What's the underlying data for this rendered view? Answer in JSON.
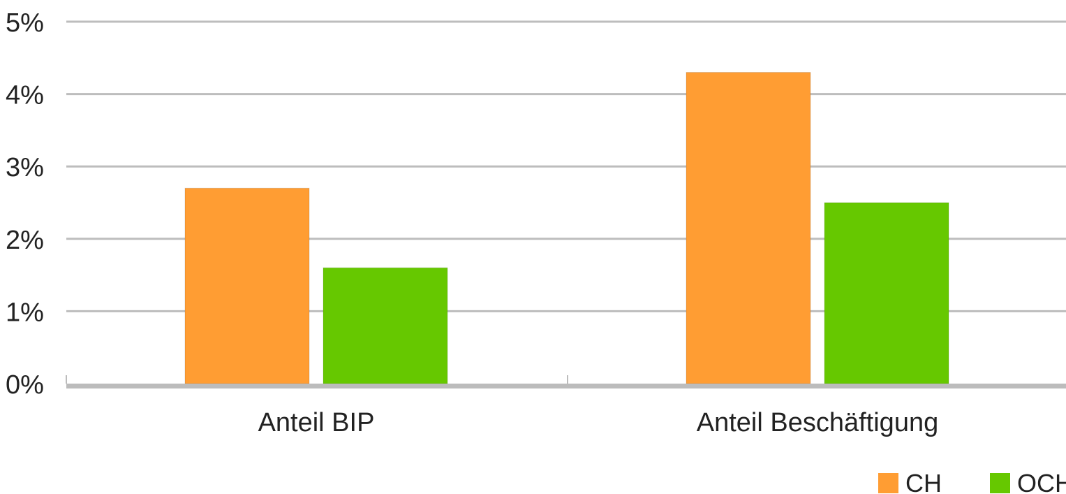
{
  "chart_data": {
    "type": "bar",
    "categories": [
      "Anteil BIP",
      "Anteil Beschäftigung"
    ],
    "series": [
      {
        "name": "CH",
        "values": [
          2.7,
          4.3
        ],
        "color": "#FF9D33"
      },
      {
        "name": "OCH",
        "values": [
          1.6,
          2.5
        ],
        "color": "#66C800"
      }
    ],
    "ylim": [
      0,
      5
    ],
    "yticks": [
      0,
      1,
      2,
      3,
      4,
      5
    ],
    "ytick_labels": [
      "0%",
      "1%",
      "2%",
      "3%",
      "4%",
      "5%"
    ],
    "grid": true,
    "legend_position": "bottom-right",
    "title": "",
    "xlabel": "",
    "ylabel": ""
  }
}
